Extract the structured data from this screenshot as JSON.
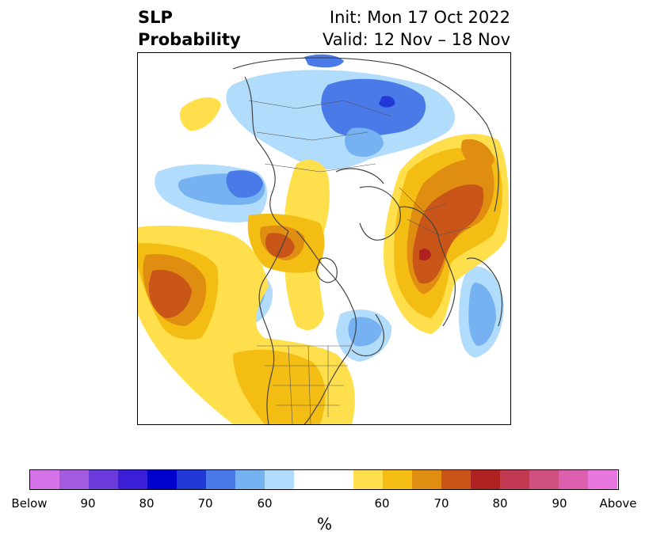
{
  "title": {
    "left_line1": "SLP",
    "left_line2": "Probability",
    "right_line1": "Init: Mon 17 Oct 2022",
    "right_line2": "Valid: 12 Nov – 18 Nov"
  },
  "colorbar": {
    "unit": "%",
    "colors": [
      "#d474e8",
      "#a25adf",
      "#6b3adb",
      "#3a1fd6",
      "#0000cc",
      "#2239d8",
      "#4a79e8",
      "#76b1f2",
      "#b1dcfb",
      "#ffffff",
      "#ffe04c",
      "#f4bd14",
      "#e08e12",
      "#c95618",
      "#b02222",
      "#c23a52",
      "#cf4f7e",
      "#dc60ad",
      "#e877df"
    ],
    "tick_labels": [
      "Below",
      "90",
      "80",
      "70",
      "60",
      "60",
      "70",
      "80",
      "90",
      "Above"
    ]
  },
  "legend_colors": {
    "above_60": "#ffe04c",
    "above_70": "#e08e12",
    "above_80": "#b02222",
    "below_60": "#b1dcfb",
    "below_70": "#4a79e8",
    "below_80": "#2239d8"
  }
}
